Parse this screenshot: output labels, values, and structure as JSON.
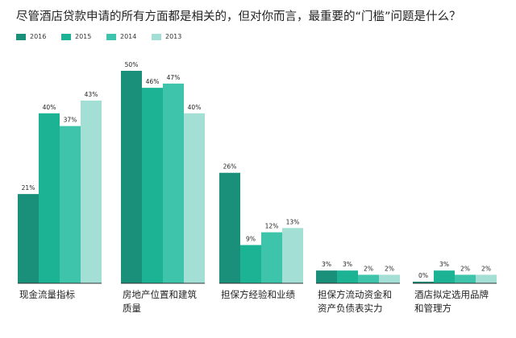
{
  "title": "尽管酒店贷款申请的所有方面都是相关的，但对你而言，最重要的“门槛”问题是什么？",
  "colors": {
    "2016": "#1a8f7a",
    "2015": "#1cb394",
    "2014": "#3dc4aa",
    "2013": "#a3dfd5",
    "baseline": "#333333"
  },
  "chart_data": {
    "type": "bar",
    "title": "尽管酒店贷款申请的所有方面都是相关的，但对你而言，最重要的“门槛”问题是什么？",
    "xlabel": "",
    "ylabel": "",
    "ylim": [
      0,
      50
    ],
    "grid": false,
    "legend_position": "top-left",
    "categories": [
      [
        "现金流量指标"
      ],
      [
        "房地产位置和建筑",
        "质量"
      ],
      [
        "担保方经验和业绩"
      ],
      [
        "担保方流动资金和",
        "资产负债表实力"
      ],
      [
        "酒店拟定选用品牌",
        "和管理方"
      ]
    ],
    "series": [
      {
        "name": "2016",
        "color": "#1a8f7a",
        "values": [
          21,
          50,
          26,
          3,
          0
        ],
        "labels": [
          "21%",
          "50%",
          "26%",
          "3%",
          "0%"
        ]
      },
      {
        "name": "2015",
        "color": "#1cb394",
        "values": [
          40,
          46,
          9,
          3,
          3
        ],
        "labels": [
          "40%",
          "46%",
          "9%",
          "3%",
          "3%"
        ]
      },
      {
        "name": "2014",
        "color": "#3dc4aa",
        "values": [
          37,
          47,
          12,
          2,
          2
        ],
        "labels": [
          "37%",
          "47%",
          "12%",
          "2%",
          "2%"
        ]
      },
      {
        "name": "2013",
        "color": "#a3dfd5",
        "values": [
          43,
          40,
          13,
          2,
          2
        ],
        "labels": [
          "43%",
          "40%",
          "13%",
          "2%",
          "2%"
        ]
      }
    ]
  }
}
